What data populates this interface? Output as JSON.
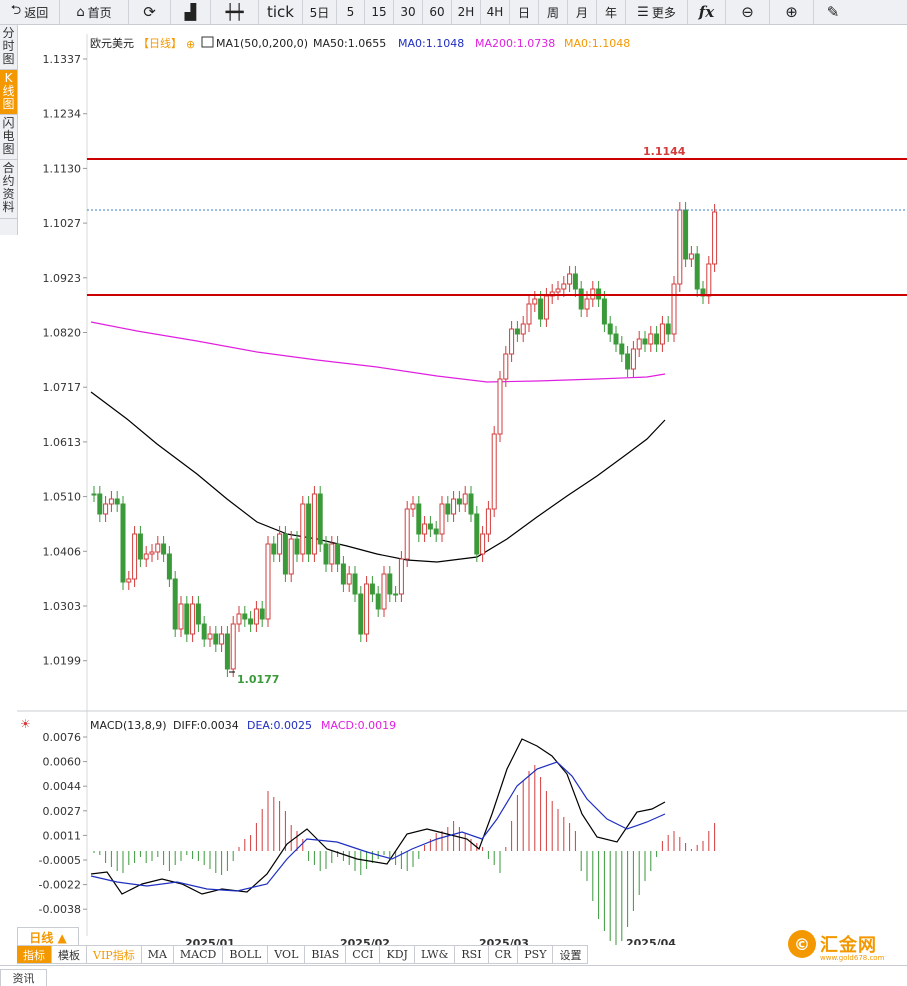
{
  "toolbar": {
    "back": "返回",
    "home": "首页",
    "tick": "tick",
    "periods": [
      "5日",
      "5",
      "15",
      "30",
      "60",
      "2H",
      "4H",
      "日",
      "周",
      "月",
      "年"
    ],
    "more": "更多",
    "fx": "fx"
  },
  "left_tabs": [
    {
      "label": "分时图",
      "active": false
    },
    {
      "label": "K线图",
      "active": true
    },
    {
      "label": "闪电图",
      "active": false
    },
    {
      "label": "合约资料",
      "active": false
    }
  ],
  "legend": {
    "symbol": "欧元美元",
    "period": "【日线】",
    "ma_label": "MA1(50,0,200,0)",
    "ma50": "MA50:1.0655",
    "ma0a": "MA0:1.1048",
    "ma200": "MA200:1.0738",
    "ma0b": "MA0:1.1048"
  },
  "macd_legend": {
    "label": "MACD(13,8,9)",
    "diff": "DIFF:0.0034",
    "dea": "DEA:0.0025",
    "macd": "MACD:0.0019"
  },
  "annotations": {
    "high": "1.1144",
    "low": "1.0177"
  },
  "main_yticks": [
    "1.1337",
    "1.1234",
    "1.1130",
    "1.1027",
    "1.0923",
    "1.0820",
    "1.0717",
    "1.0613",
    "1.0510",
    "1.0406",
    "1.0303",
    "1.0199"
  ],
  "macd_yticks": [
    "0.0076",
    "0.0060",
    "0.0044",
    "0.0027",
    "0.0011",
    "-0.0005",
    "-0.0022",
    "-0.0038"
  ],
  "xticks": [
    "2025/01",
    "2025/02",
    "2025/03",
    "2025/04"
  ],
  "period_tab": "日线 ▲",
  "indicators": [
    {
      "label": "指标",
      "active": true
    },
    {
      "label": "模板",
      "active": false
    },
    {
      "label": "VIP指标",
      "active": false,
      "vip": true
    },
    {
      "label": "MA"
    },
    {
      "label": "MACD"
    },
    {
      "label": "BOLL"
    },
    {
      "label": "VOL"
    },
    {
      "label": "BIAS"
    },
    {
      "label": "CCI"
    },
    {
      "label": "KDJ"
    },
    {
      "label": "LW&"
    },
    {
      "label": "RSI"
    },
    {
      "label": "CR"
    },
    {
      "label": "PSY"
    },
    {
      "label": "设置"
    }
  ],
  "footer_tab": "资讯",
  "logo": {
    "mark": "©",
    "name": "汇金网",
    "url": "www.gold678.com"
  },
  "colors": {
    "up": "#d23c3c",
    "down": "#3a9a3a",
    "ma50": "#000000",
    "ma200": "#e020e0",
    "accent": "#f39800",
    "hline": "#cc0000",
    "dif": "#000000",
    "dea": "#1f2fbf"
  }
}
